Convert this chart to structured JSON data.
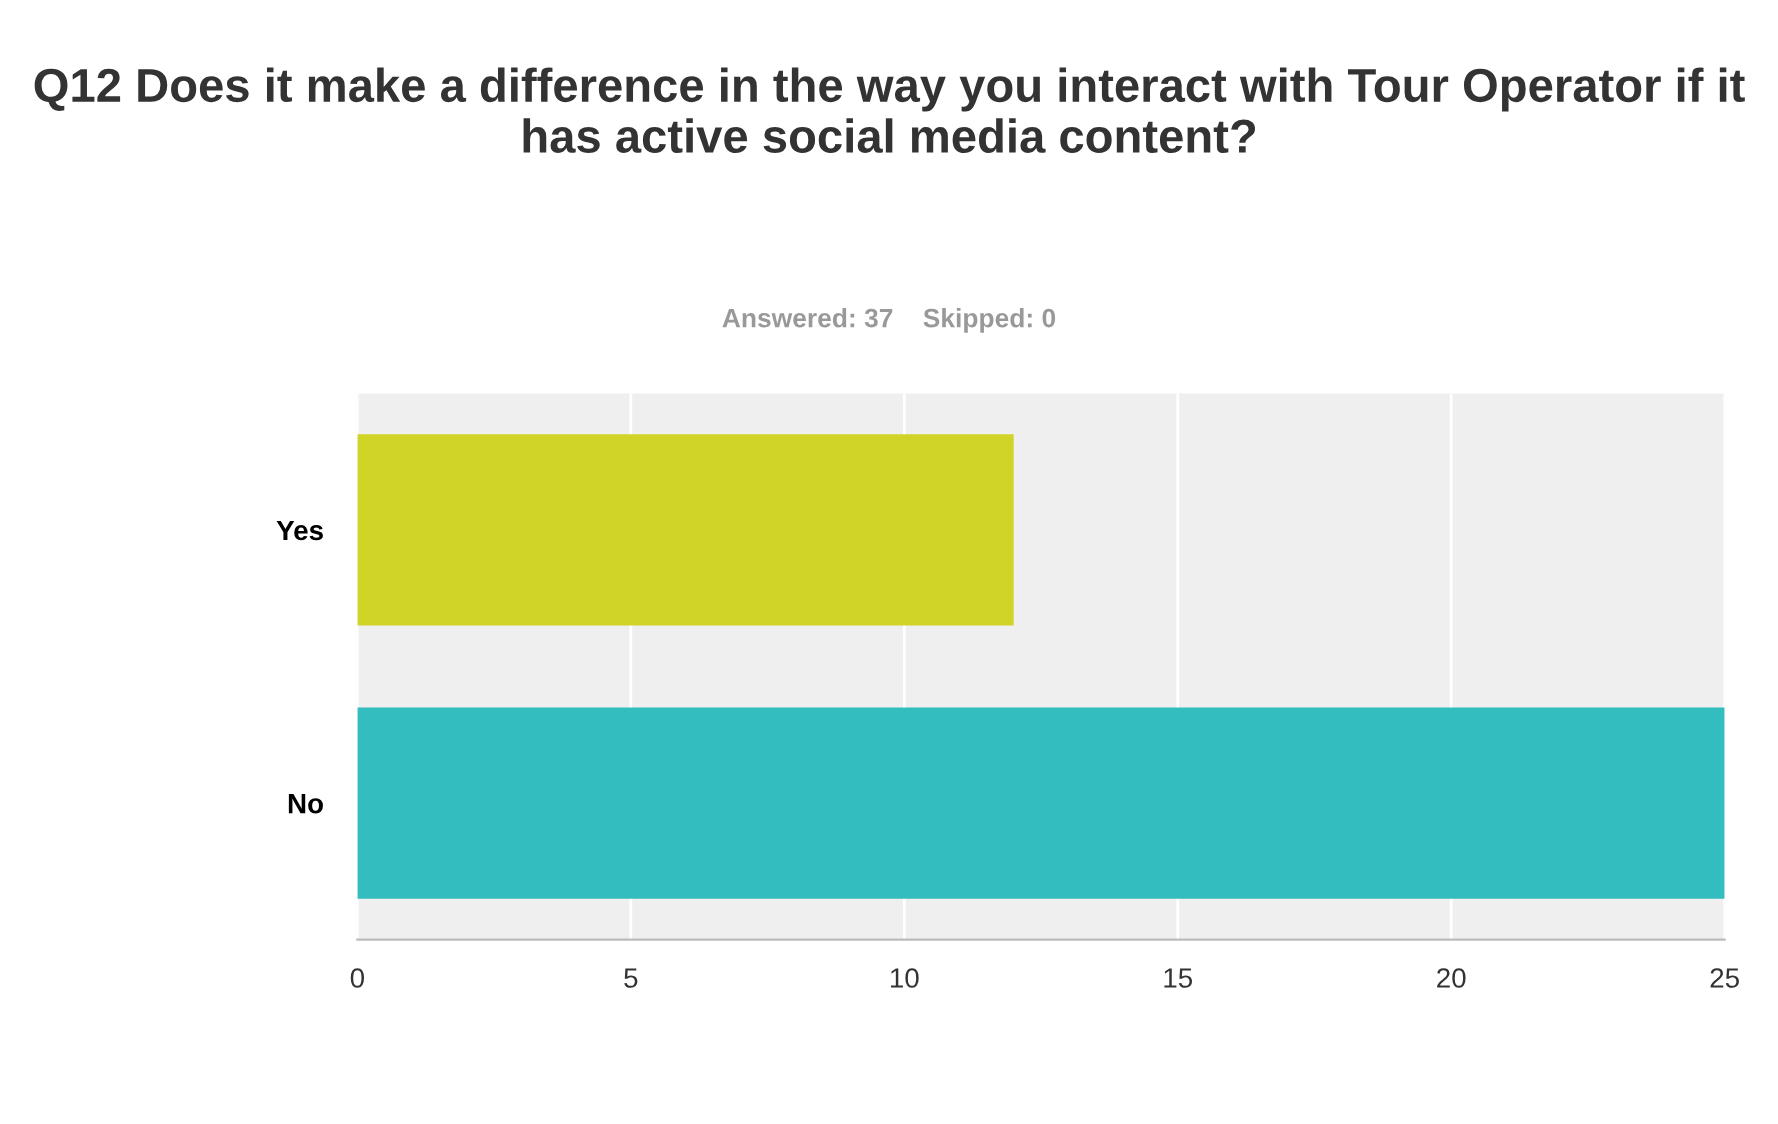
{
  "chart_data": {
    "type": "bar",
    "orientation": "horizontal",
    "title": "Q12 Does it make a difference in the way you interact with Tour Operator if it has active social media content?",
    "subtitle": "Answered: 37    Skipped: 0",
    "categories": [
      "Yes",
      "No"
    ],
    "values": [
      12,
      25
    ],
    "colors": [
      "#cfd427",
      "#33bdbf"
    ],
    "xlim": [
      0,
      25
    ],
    "xticks": [
      0,
      5,
      10,
      15,
      20,
      25
    ],
    "grid": "x"
  }
}
